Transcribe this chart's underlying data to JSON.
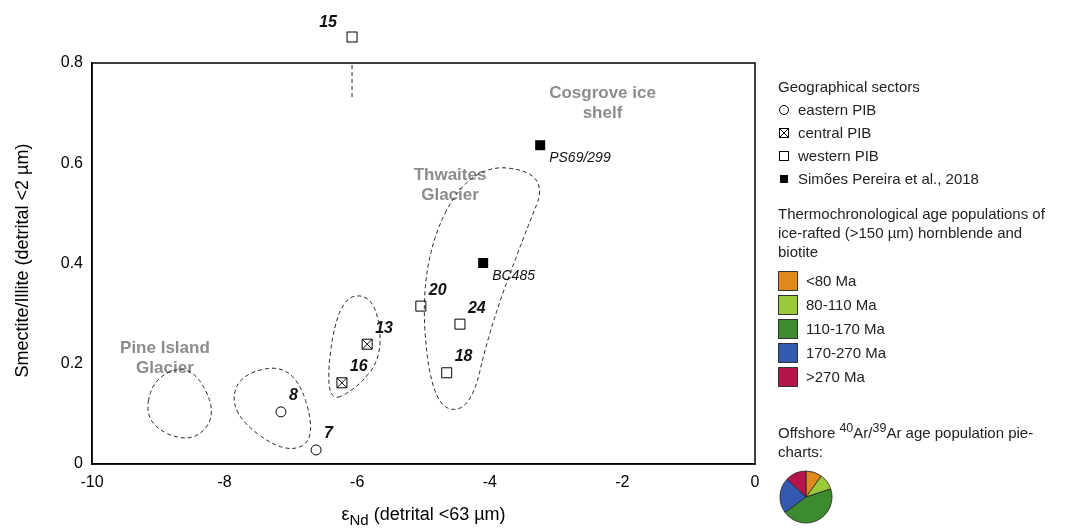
{
  "chart_data": {
    "type": "scatter",
    "xlabel": "ε$_{Nd}$ (detrital <63 µm)",
    "ylabel": "Smectite/Illite (detrital <2 µm)",
    "legend_title": "Geographical sectors",
    "legend": "right",
    "grid": false,
    "xlim": [
      -10,
      0
    ],
    "xticks": [
      -10,
      -8,
      -6,
      -4,
      -2,
      0
    ],
    "ylim": [
      0,
      0.8
    ],
    "yticks": [
      0,
      0.2,
      0.4,
      0.6,
      0.8
    ],
    "series": [
      {
        "name": "eastern PIB",
        "color": "#000000",
        "marker": "circle",
        "x": [
          -7.15,
          -6.62
        ],
        "values": [
          0.104,
          0.028
        ]
      },
      {
        "name": "central PIB",
        "color": "#000000",
        "x": [
          -6.23,
          -5.85
        ],
        "values": [
          0.162,
          0.239
        ]
      },
      {
        "name": "western PIB",
        "color": "#000000",
        "marker": "square",
        "x": [
          -5.04,
          -4.45,
          -4.65
        ],
        "values": [
          0.315,
          0.279,
          0.182
        ]
      },
      {
        "name": "Simões Pereira et al., 2018",
        "color": "#000000",
        "marker": "square_filled",
        "x": [
          -4.1,
          -3.24
        ],
        "values": [
          0.401,
          0.636
        ]
      },
      {
        "name": "<80 Ma",
        "color": "#e08a1e",
        "values": [
          null
        ]
      },
      {
        "name": "80-110 Ma",
        "color": "#9cc93a",
        "values": [
          null
        ]
      },
      {
        "name": "110-170 Ma",
        "color": "#3d8b2f",
        "values": [
          null
        ]
      },
      {
        "name": "170-270 Ma",
        "color": "#3558b0",
        "values": [
          null
        ]
      },
      {
        "name": ">270 Ma",
        "color": "#b5154b",
        "values": [
          null
        ]
      }
    ],
    "annotations": [
      "Thermochronological age populations of ice-rafted (>150 µm) hornblende and biotite",
      "Offshore $^{40}$Ar/$^{39}$Ar age population pie-charts:",
      "15",
      "Pine Island Glacier",
      "Thwaites Glacier",
      "Cosgrove ice shelf",
      {
        "text": "8",
        "x": -7.15,
        "y": 0.104
      },
      {
        "text": "7",
        "x": -6.62,
        "y": 0.028
      },
      {
        "text": "16",
        "x": -6.23,
        "y": 0.162
      },
      {
        "text": "13",
        "x": -5.85,
        "y": 0.239
      },
      {
        "text": "20",
        "x": -5.04,
        "y": 0.315
      },
      {
        "text": "24",
        "x": -4.45,
        "y": 0.279
      },
      {
        "text": "18",
        "x": -4.65,
        "y": 0.182
      },
      {
        "text": "BC485",
        "x": -4.1,
        "y": 0.401
      },
      {
        "text": "PS69/299",
        "x": -3.24,
        "y": 0.636
      }
    ]
  }
}
